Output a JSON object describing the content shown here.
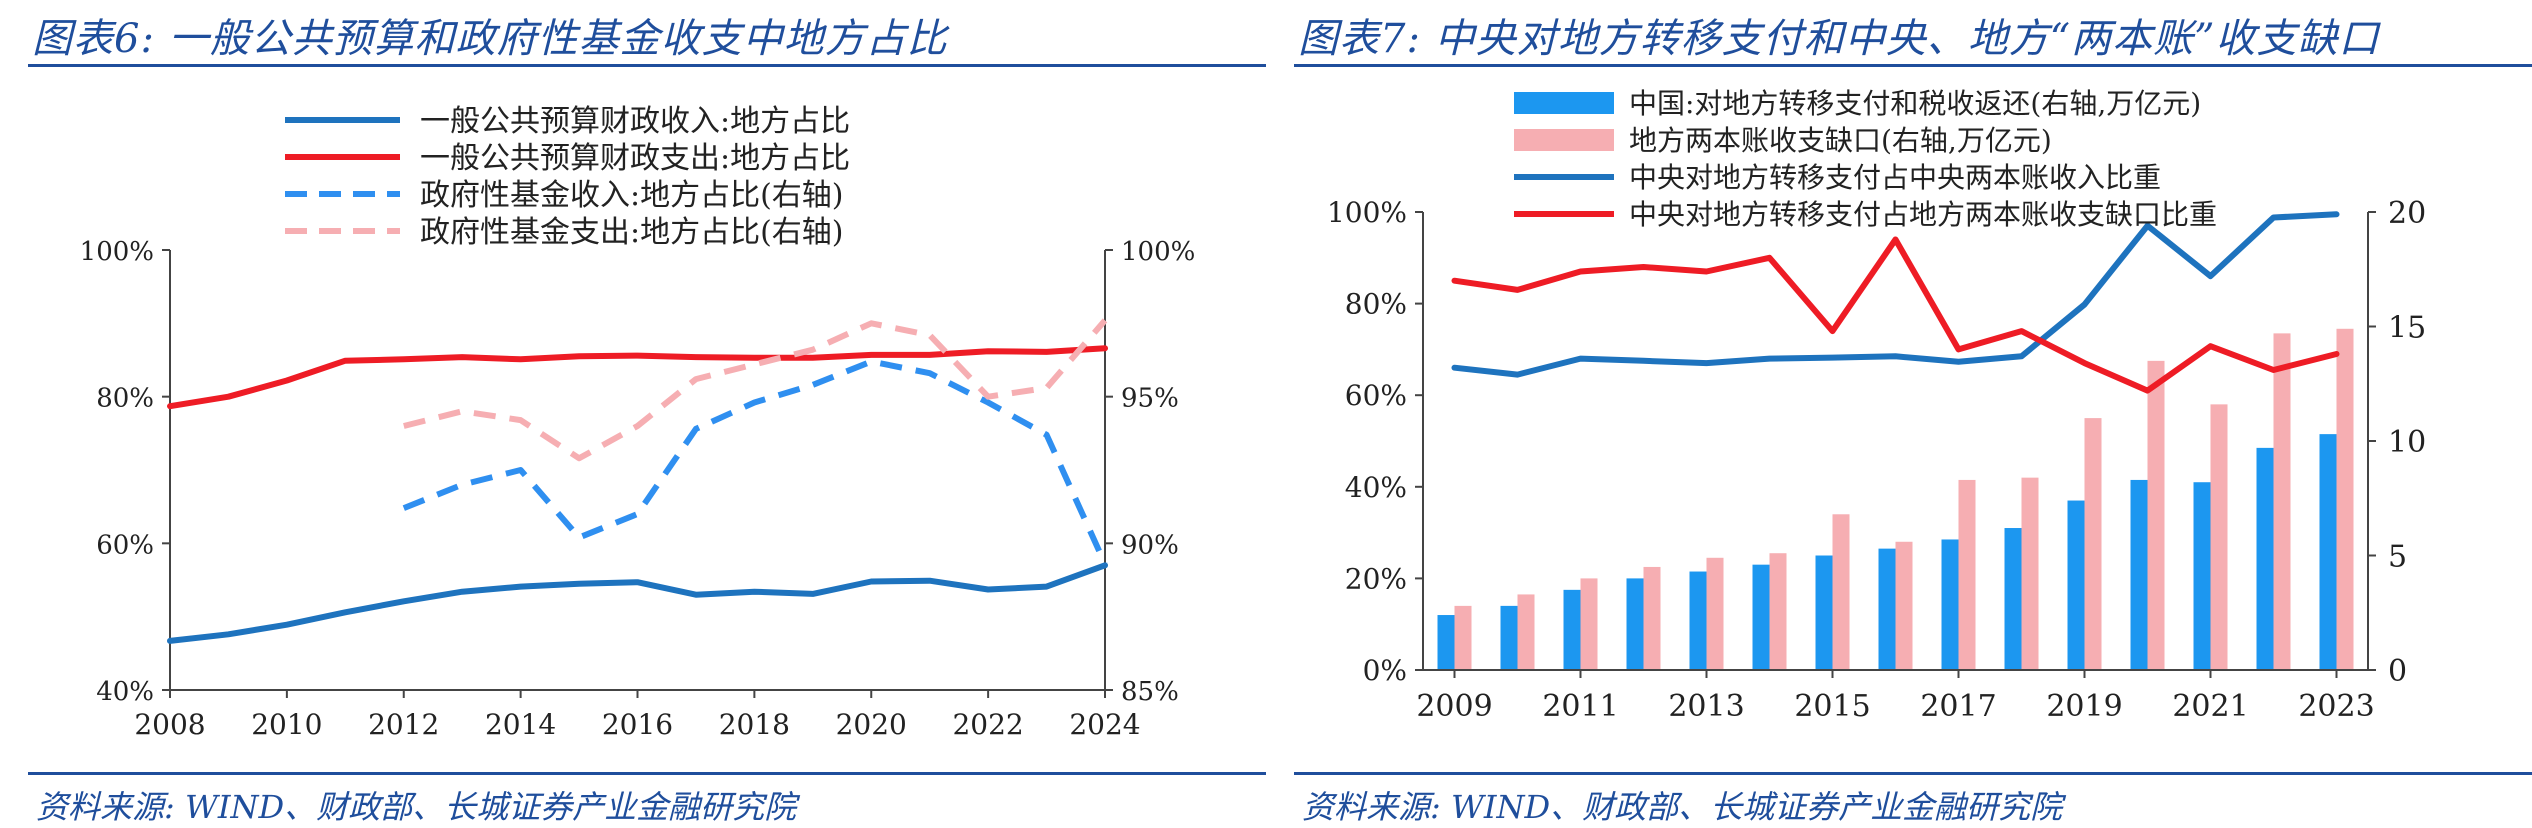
{
  "left": {
    "title": "图表6:  一般公共预算和政府性基金收支中地方占比",
    "source": "资料来源:  WIND、财政部、长城证券产业金融研究院",
    "colors": {
      "red": "#ee1c25",
      "blue": "#1e73be",
      "lightblue": "#2f8ff0",
      "pink": "#f6aeb2"
    },
    "chart_data": {
      "type": "line",
      "x": [
        2008,
        2009,
        2010,
        2011,
        2012,
        2013,
        2014,
        2015,
        2016,
        2017,
        2018,
        2019,
        2020,
        2021,
        2022,
        2023,
        2024
      ],
      "xticks": [
        "2008",
        "2010",
        "2012",
        "2014",
        "2016",
        "2018",
        "2020",
        "2022",
        "2024"
      ],
      "yticks_left": [
        "40%",
        "60%",
        "80%",
        "100%"
      ],
      "yticks_right": [
        "85%",
        "90%",
        "95%",
        "100%"
      ],
      "ylim_left": [
        40,
        100
      ],
      "ylim_right": [
        85,
        100
      ],
      "legend_position": "top",
      "series": [
        {
          "name": "一般公共预算财政收入:地方占比",
          "axis": "left",
          "style": "solid",
          "color": "#1e73be",
          "values": [
            46.7,
            47.6,
            48.9,
            50.6,
            52.1,
            53.4,
            54.1,
            54.5,
            54.7,
            53.0,
            53.4,
            53.1,
            54.8,
            54.9,
            53.7,
            54.1,
            57.0
          ]
        },
        {
          "name": "一般公共预算财政支出:地方占比",
          "axis": "left",
          "style": "solid",
          "color": "#ee1c25",
          "values": [
            78.7,
            80.0,
            82.2,
            84.9,
            85.1,
            85.4,
            85.1,
            85.5,
            85.6,
            85.4,
            85.3,
            85.3,
            85.7,
            85.7,
            86.2,
            86.1,
            86.6
          ]
        },
        {
          "name": "政府性基金收入:地方占比(右轴)",
          "axis": "right",
          "style": "dashed",
          "color": "#2f8ff0",
          "values": [
            null,
            null,
            null,
            null,
            91.2,
            92.0,
            92.5,
            90.2,
            91.0,
            93.9,
            94.8,
            95.4,
            96.2,
            95.8,
            94.8,
            93.7,
            89.3
          ]
        },
        {
          "name": "政府性基金支出:地方占比(右轴)",
          "axis": "right",
          "style": "dashed",
          "color": "#f6aeb2",
          "values": [
            null,
            null,
            null,
            null,
            94.0,
            94.5,
            94.2,
            92.9,
            94.0,
            95.6,
            96.1,
            96.6,
            97.5,
            97.1,
            95.0,
            95.3,
            97.6
          ]
        }
      ]
    }
  },
  "right": {
    "title": "图表7:  中央对地方转移支付和中央、地方“两本账”收支缺口",
    "source": "资料来源:  WIND、财政部、长城证券产业金融研究院",
    "colors": {
      "red": "#ee1c25",
      "blue": "#1e73be",
      "bar_blue": "#1c97f0",
      "bar_pink": "#f6aeb2"
    },
    "chart_data": {
      "type": "bar",
      "categories": [
        "2009",
        "2010",
        "2011",
        "2012",
        "2013",
        "2014",
        "2015",
        "2016",
        "2017",
        "2018",
        "2019",
        "2020",
        "2021",
        "2022",
        "2023"
      ],
      "xticks": [
        "2009",
        "2011",
        "2013",
        "2015",
        "2017",
        "2019",
        "2021",
        "2023"
      ],
      "yticks_left": [
        "0%",
        "20%",
        "40%",
        "60%",
        "80%",
        "100%"
      ],
      "yticks_right": [
        "0",
        "5",
        "10",
        "15",
        "20"
      ],
      "ylim_left": [
        0,
        100
      ],
      "ylim_right": [
        0,
        20
      ],
      "legend_position": "top",
      "series": [
        {
          "name": "中国:对地方转移支付和税收返还(右轴,万亿元)",
          "axis": "right",
          "kind": "bar",
          "color": "#1c97f0",
          "values": [
            2.4,
            2.8,
            3.5,
            4.0,
            4.3,
            4.6,
            5.0,
            5.3,
            5.7,
            6.2,
            7.4,
            8.3,
            8.2,
            9.7,
            10.3
          ]
        },
        {
          "name": "地方两本账收支缺口(右轴,万亿元)",
          "axis": "right",
          "kind": "bar",
          "color": "#f6aeb2",
          "values": [
            2.8,
            3.3,
            4.0,
            4.5,
            4.9,
            5.1,
            6.8,
            5.6,
            8.3,
            8.4,
            11.0,
            13.5,
            11.6,
            14.7,
            14.9
          ]
        },
        {
          "name": "中央对地方转移支付占中央两本账收入比重",
          "axis": "left",
          "kind": "line",
          "color": "#1e73be",
          "values": [
            66.0,
            64.5,
            68.0,
            67.5,
            67.0,
            68.0,
            68.2,
            68.5,
            67.3,
            68.5,
            79.8,
            97.0,
            86.0,
            98.8,
            99.5
          ]
        },
        {
          "name": "中央对地方转移支付占地方两本账收支缺口比重",
          "axis": "left",
          "kind": "line",
          "color": "#ee1c25",
          "values": [
            85.0,
            83.0,
            87.0,
            88.0,
            87.0,
            90.0,
            74.0,
            94.0,
            70.0,
            74.0,
            67.0,
            61.0,
            70.7,
            65.5,
            69.0
          ]
        }
      ]
    }
  }
}
